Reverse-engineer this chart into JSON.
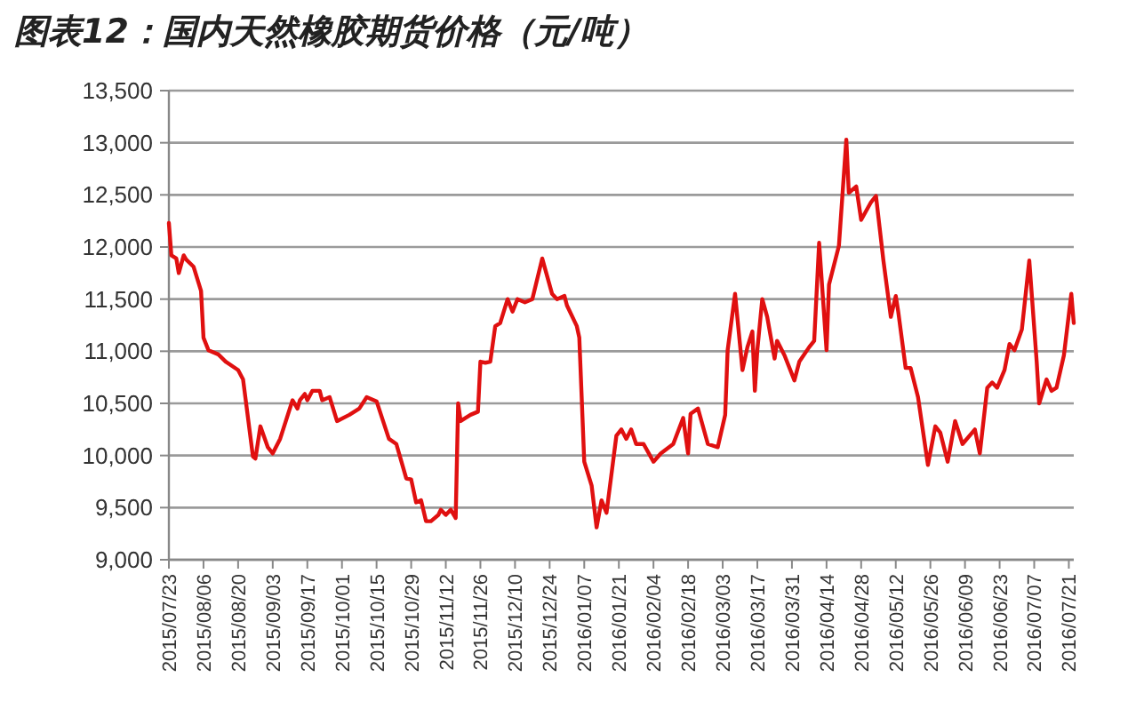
{
  "chart_data": {
    "type": "line",
    "title": "图表12：国内天然橡胶期货价格（元/吨）",
    "x": [
      "2015-07-23",
      "2015-07-24",
      "2015-07-26",
      "2015-07-27",
      "2015-07-29",
      "2015-07-30",
      "2015-08-02",
      "2015-08-05",
      "2015-08-06",
      "2015-08-08",
      "2015-08-12",
      "2015-08-15",
      "2015-08-20",
      "2015-08-22",
      "2015-08-26",
      "2015-08-27",
      "2015-08-29",
      "2015-09-01",
      "2015-09-03",
      "2015-09-06",
      "2015-09-11",
      "2015-09-13",
      "2015-09-14",
      "2015-09-16",
      "2015-09-17",
      "2015-09-19",
      "2015-09-22",
      "2015-09-23",
      "2015-09-26",
      "2015-09-29",
      "2015-10-04",
      "2015-10-08",
      "2015-10-11",
      "2015-10-15",
      "2015-10-20",
      "2015-10-23",
      "2015-10-27",
      "2015-10-29",
      "2015-10-31",
      "2015-11-02",
      "2015-11-04",
      "2015-11-06",
      "2015-11-09",
      "2015-11-10",
      "2015-11-12",
      "2015-11-14",
      "2015-11-16",
      "2015-11-17",
      "2015-11-18",
      "2015-11-22",
      "2015-11-25",
      "2015-11-26",
      "2015-11-28",
      "2015-11-30",
      "2015-12-02",
      "2015-12-04",
      "2015-12-07",
      "2015-12-09",
      "2015-12-11",
      "2015-12-14",
      "2015-12-17",
      "2015-12-21",
      "2015-12-25",
      "2015-12-27",
      "2015-12-30",
      "2015-12-31",
      "2016-01-04",
      "2016-01-05",
      "2016-01-07",
      "2016-01-10",
      "2016-01-12",
      "2016-01-14",
      "2016-01-16",
      "2016-01-20",
      "2016-01-22",
      "2016-01-24",
      "2016-01-26",
      "2016-01-28",
      "2016-01-31",
      "2016-02-04",
      "2016-02-07",
      "2016-02-12",
      "2016-02-16",
      "2016-02-18",
      "2016-02-19",
      "2016-02-22",
      "2016-02-26",
      "2016-03-01",
      "2016-03-04",
      "2016-03-05",
      "2016-03-08",
      "2016-03-11",
      "2016-03-13",
      "2016-03-15",
      "2016-03-16",
      "2016-03-17",
      "2016-03-19",
      "2016-03-21",
      "2016-03-24",
      "2016-03-25",
      "2016-03-28",
      "2016-04-01",
      "2016-04-03",
      "2016-04-07",
      "2016-04-09",
      "2016-04-11",
      "2016-04-14",
      "2016-04-15",
      "2016-04-19",
      "2016-04-22",
      "2016-04-23",
      "2016-04-26",
      "2016-04-28",
      "2016-05-02",
      "2016-05-04",
      "2016-05-07",
      "2016-05-10",
      "2016-05-12",
      "2016-05-13",
      "2016-05-16",
      "2016-05-18",
      "2016-05-21",
      "2016-05-25",
      "2016-05-28",
      "2016-05-30",
      "2016-06-02",
      "2016-06-05",
      "2016-06-08",
      "2016-06-13",
      "2016-06-15",
      "2016-06-18",
      "2016-06-20",
      "2016-06-22",
      "2016-06-25",
      "2016-06-27",
      "2016-06-29",
      "2016-07-02",
      "2016-07-05",
      "2016-07-08",
      "2016-07-09",
      "2016-07-12",
      "2016-07-14",
      "2016-07-16",
      "2016-07-19",
      "2016-07-22",
      "2016-07-23"
    ],
    "series": [
      {
        "color": "#e01010",
        "values": [
          12230,
          11920,
          11890,
          11750,
          11920,
          11880,
          11810,
          11580,
          11130,
          11010,
          10970,
          10900,
          10820,
          10730,
          9990,
          9970,
          10280,
          10080,
          10020,
          10160,
          10530,
          10450,
          10530,
          10590,
          10530,
          10620,
          10620,
          10530,
          10560,
          10330,
          10390,
          10450,
          10560,
          10520,
          10160,
          10110,
          9780,
          9770,
          9550,
          9570,
          9370,
          9370,
          9430,
          9480,
          9430,
          9480,
          9400,
          10500,
          10330,
          10390,
          10420,
          10900,
          10890,
          10900,
          11240,
          11270,
          11500,
          11380,
          11500,
          11470,
          11500,
          11890,
          11550,
          11500,
          11530,
          11440,
          11240,
          11130,
          9940,
          9710,
          9310,
          9570,
          9450,
          10190,
          10250,
          10160,
          10250,
          10110,
          10110,
          9940,
          10020,
          10110,
          10360,
          10020,
          10400,
          10450,
          10110,
          10080,
          10390,
          11010,
          11550,
          10820,
          11040,
          11190,
          10620,
          11010,
          11500,
          11330,
          10930,
          11100,
          10960,
          10720,
          10900,
          11040,
          11100,
          12040,
          11010,
          11640,
          12010,
          13030,
          12520,
          12580,
          12260,
          12430,
          12490,
          11870,
          11330,
          11530,
          11380,
          10840,
          10840,
          10560,
          9910,
          10280,
          10220,
          9940,
          10330,
          10110,
          10250,
          10020,
          10650,
          10700,
          10650,
          10820,
          11070,
          11010,
          11210,
          11870,
          10900,
          10500,
          10730,
          10620,
          10650,
          10960,
          11550,
          11270
        ]
      }
    ],
    "xlim": [
      "2015-07-23",
      "2016-07-23"
    ],
    "xticks": [
      {
        "value": "2015-07-23",
        "label": "2015/07/23"
      },
      {
        "value": "2015-08-06",
        "label": "2015/08/06"
      },
      {
        "value": "2015-08-20",
        "label": "2015/08/20"
      },
      {
        "value": "2015-09-03",
        "label": "2015/09/03"
      },
      {
        "value": "2015-09-17",
        "label": "2015/09/17"
      },
      {
        "value": "2015-10-01",
        "label": "2015/10/01"
      },
      {
        "value": "2015-10-15",
        "label": "2015/10/15"
      },
      {
        "value": "2015-10-29",
        "label": "2015/10/29"
      },
      {
        "value": "2015-11-12",
        "label": "2015/11/12"
      },
      {
        "value": "2015-11-26",
        "label": "2015/11/26"
      },
      {
        "value": "2015-12-10",
        "label": "2015/12/10"
      },
      {
        "value": "2015-12-24",
        "label": "2015/12/24"
      },
      {
        "value": "2016-01-07",
        "label": "2016/01/07"
      },
      {
        "value": "2016-01-21",
        "label": "2016/01/21"
      },
      {
        "value": "2016-02-04",
        "label": "2016/02/04"
      },
      {
        "value": "2016-02-18",
        "label": "2016/02/18"
      },
      {
        "value": "2016-03-03",
        "label": "2016/03/03"
      },
      {
        "value": "2016-03-17",
        "label": "2016/03/17"
      },
      {
        "value": "2016-03-31",
        "label": "2016/03/31"
      },
      {
        "value": "2016-04-14",
        "label": "2016/04/14"
      },
      {
        "value": "2016-04-28",
        "label": "2016/04/28"
      },
      {
        "value": "2016-05-12",
        "label": "2016/05/12"
      },
      {
        "value": "2016-05-26",
        "label": "2016/05/26"
      },
      {
        "value": "2016-06-09",
        "label": "2016/06/09"
      },
      {
        "value": "2016-06-23",
        "label": "2016/06/23"
      },
      {
        "value": "2016-07-07",
        "label": "2016/07/07"
      },
      {
        "value": "2016-07-21",
        "label": "2016/07/21"
      }
    ],
    "ylim": [
      9000,
      13500
    ],
    "yticks": [
      {
        "value": 9000,
        "label": "9,000"
      },
      {
        "value": 9500,
        "label": "9,500"
      },
      {
        "value": 10000,
        "label": "10,000"
      },
      {
        "value": 10500,
        "label": "10,500"
      },
      {
        "value": 11000,
        "label": "11,000"
      },
      {
        "value": 11500,
        "label": "11,500"
      },
      {
        "value": 12000,
        "label": "12,000"
      },
      {
        "value": 12500,
        "label": "12,500"
      },
      {
        "value": 13000,
        "label": "13,000"
      },
      {
        "value": 13500,
        "label": "13,500"
      }
    ],
    "grid": "y"
  }
}
